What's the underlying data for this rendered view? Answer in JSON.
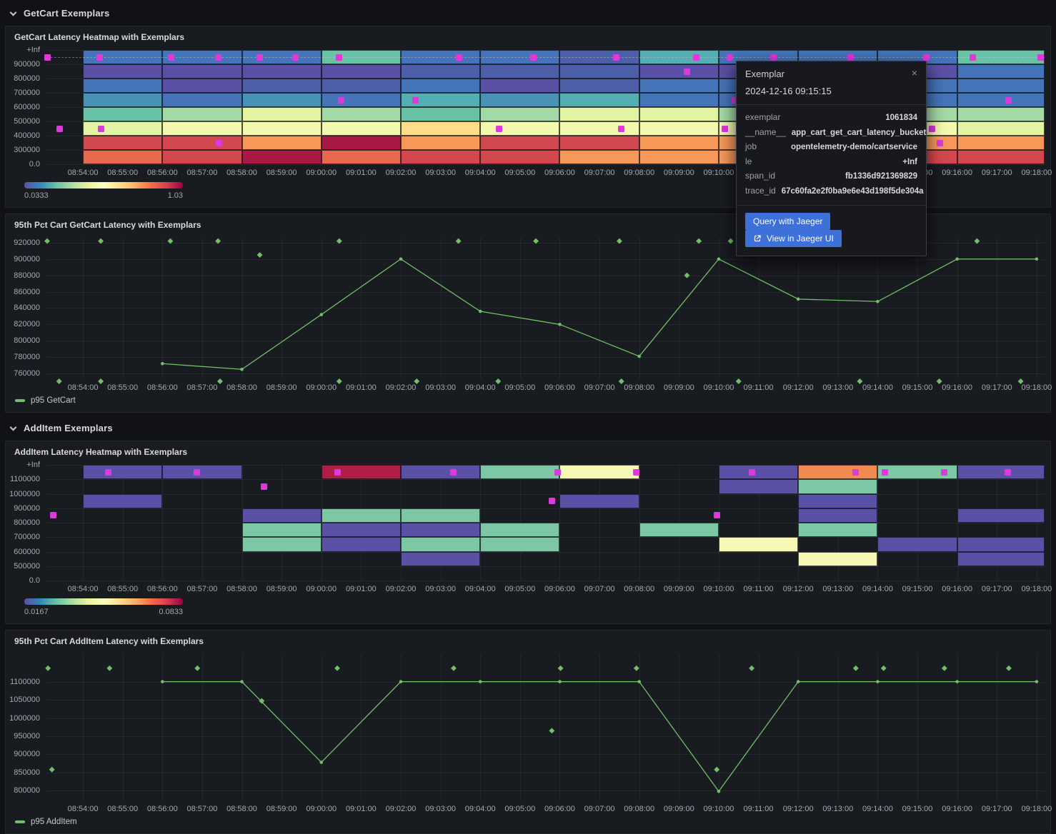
{
  "colors": {
    "background": "#111217",
    "panel_background": "#181b1f",
    "series_green": "#73bf69",
    "exemplar_magenta": "#da3bda",
    "button_blue": "#3d71d9",
    "text_primary": "#d8d9da",
    "text_axis": "#a6a9b0"
  },
  "palette": {
    "P": "#5a50a5",
    "BP": "#4d5fa9",
    "B": "#4574b8",
    "TB": "#4792b5",
    "TB2": "#54aeb2",
    "T": "#68c3a6",
    "T2": "#7cc8a5",
    "G": "#a3d9a4",
    "YG": "#e2f4a2",
    "Y": "#f2f8ae",
    "Y2": "#f7f8b5",
    "OY": "#fedc8a",
    "O": "#f79859",
    "O2": "#f08a52",
    "RO": "#e9694f",
    "R": "#d3484e",
    "C": "#a81a45",
    "C2": "#b01d45"
  },
  "sections": [
    {
      "title": "GetCart Exemplars"
    },
    {
      "title": "AddItem Exemplars"
    }
  ],
  "x_ticks": [
    "08:54:00",
    "08:55:00",
    "08:56:00",
    "08:57:00",
    "08:58:00",
    "08:59:00",
    "09:00:00",
    "09:01:00",
    "09:02:00",
    "09:03:00",
    "09:04:00",
    "09:05:00",
    "09:06:00",
    "09:07:00",
    "09:08:00",
    "09:09:00",
    "09:10:00",
    "09:11:00",
    "09:12:00",
    "09:13:00",
    "09:14:00",
    "09:15:00",
    "09:16:00",
    "09:17:00",
    "09:18:00"
  ],
  "x_range": {
    "start_label": "08:54:00",
    "end_label": "09:18:00",
    "min_offset_min": -0.9,
    "span_min": 25.1
  },
  "chart_data": [
    {
      "type": "heatmap",
      "title": "GetCart Latency Heatmap with Exemplars",
      "y_ticks": [
        "+Inf",
        "900000",
        "800000",
        "700000",
        "600000",
        "500000",
        "400000",
        "300000",
        "0.0"
      ],
      "col_start_min": 0,
      "col_width_min": 2,
      "dashed_guideline": true,
      "colorbar": {
        "min": "0.0333",
        "max": "1.03"
      },
      "cells": [
        [
          "B",
          "P",
          "B",
          "TB",
          "T",
          "YG",
          "R",
          "RO"
        ],
        [
          "B",
          "P",
          "P",
          "B",
          "G",
          "Y",
          "R",
          "R"
        ],
        [
          "B",
          "P",
          "BP",
          "TB",
          "YG",
          "Y",
          "O",
          "C"
        ],
        [
          "T",
          "P",
          "BP",
          "B",
          "G",
          "Y",
          "C",
          "RO"
        ],
        [
          "B",
          "BP",
          "B",
          "TB2",
          "T",
          "OY",
          "O",
          "R"
        ],
        [
          "B",
          "BP",
          "P",
          "TB",
          "G",
          "Y",
          "R",
          "R"
        ],
        [
          "BP",
          "BP",
          "BP",
          "TB2",
          "YG",
          "Y",
          "R",
          "O"
        ],
        [
          "TB2",
          "P",
          "B",
          "B",
          "YG",
          "Y",
          "O",
          "O"
        ],
        [
          "B",
          "P",
          "B",
          "B",
          "G",
          "Y",
          "O",
          "O"
        ],
        [
          "B",
          "P",
          "B",
          "TB",
          "G",
          "Y",
          "O",
          "R"
        ],
        [
          "B",
          "P",
          "B",
          "B",
          "G",
          "Y",
          "O",
          "R"
        ],
        [
          "T",
          "B",
          "B",
          "B",
          "G",
          "YG",
          "O",
          "R"
        ]
      ],
      "exemplars": [
        {
          "t": -0.89,
          "row": 0
        },
        {
          "t": 0.43,
          "row": 0
        },
        {
          "t": 2.22,
          "row": 0
        },
        {
          "t": 3.4,
          "row": 0
        },
        {
          "t": 4.45,
          "row": 0
        },
        {
          "t": 5.35,
          "row": 0
        },
        {
          "t": 6.44,
          "row": 0
        },
        {
          "t": 9.46,
          "row": 0
        },
        {
          "t": 11.33,
          "row": 0
        },
        {
          "t": 13.42,
          "row": 0
        },
        {
          "t": 15.43,
          "row": 0
        },
        {
          "t": 16.28,
          "row": 0
        },
        {
          "t": 17.38,
          "row": 0
        },
        {
          "t": 19.32,
          "row": 0
        },
        {
          "t": 21.23,
          "row": 0
        },
        {
          "t": 22.4,
          "row": 0
        },
        {
          "t": 24.1,
          "row": 0
        },
        {
          "t": 15.2,
          "row": 1
        },
        {
          "t": 6.5,
          "row": 3
        },
        {
          "t": 8.37,
          "row": 3
        },
        {
          "t": 16.4,
          "row": 3
        },
        {
          "t": 23.3,
          "row": 3
        },
        {
          "t": -0.59,
          "row": 5
        },
        {
          "t": 0.45,
          "row": 5
        },
        {
          "t": 10.48,
          "row": 5
        },
        {
          "t": 13.54,
          "row": 5
        },
        {
          "t": 16.16,
          "row": 5
        },
        {
          "t": 21.36,
          "row": 5
        },
        {
          "t": 3.42,
          "row": 6
        },
        {
          "t": 21.57,
          "row": 6
        }
      ]
    },
    {
      "type": "line",
      "title": "95th Pct Cart GetCart Latency with Exemplars",
      "legend": "p95 GetCart",
      "series_color": "#73bf69",
      "y_ticks": [
        920000,
        900000,
        880000,
        860000,
        840000,
        820000,
        800000,
        780000,
        760000
      ],
      "ylim": [
        753000,
        926000
      ],
      "x": [
        2,
        4,
        6,
        8,
        10,
        12,
        14,
        16,
        18,
        20,
        22,
        24
      ],
      "values": [
        772000,
        765000,
        832000,
        900000,
        836000,
        820000,
        781000,
        900000,
        851000,
        848000,
        900000,
        900000
      ],
      "exemplars": [
        {
          "t": -0.9,
          "v": 922000
        },
        {
          "t": 0.45,
          "v": 922000
        },
        {
          "t": 2.2,
          "v": 922000
        },
        {
          "t": 3.4,
          "v": 922000
        },
        {
          "t": 6.45,
          "v": 922000
        },
        {
          "t": 9.45,
          "v": 922000
        },
        {
          "t": 11.4,
          "v": 922000
        },
        {
          "t": 13.5,
          "v": 922000
        },
        {
          "t": 15.5,
          "v": 922000
        },
        {
          "t": 16.3,
          "v": 922000
        },
        {
          "t": 22.5,
          "v": 922000
        },
        {
          "t": 4.45,
          "v": 905000
        },
        {
          "t": 15.2,
          "v": 880000
        },
        {
          "t": -0.6,
          "v": 750000
        },
        {
          "t": 0.45,
          "v": 750000
        },
        {
          "t": 3.45,
          "v": 750000
        },
        {
          "t": 6.45,
          "v": 750000
        },
        {
          "t": 8.4,
          "v": 750000
        },
        {
          "t": 10.45,
          "v": 750000
        },
        {
          "t": 13.55,
          "v": 750000
        },
        {
          "t": 16.5,
          "v": 750000
        },
        {
          "t": 19.55,
          "v": 750000
        },
        {
          "t": 21.55,
          "v": 750000
        },
        {
          "t": 23.6,
          "v": 750000
        }
      ]
    },
    {
      "type": "heatmap",
      "title": "AddItem Latency Heatmap with Exemplars",
      "y_ticks": [
        "+Inf",
        "1100000",
        "1000000",
        "900000",
        "800000",
        "700000",
        "600000",
        "500000",
        "0.0"
      ],
      "col_start_min": 0,
      "col_width_min": 2,
      "dashed_guideline": false,
      "colorbar": {
        "min": "0.0167",
        "max": "0.0833"
      },
      "cells": [
        [
          "P",
          null,
          "P",
          null,
          null,
          null,
          null,
          null
        ],
        [
          "P",
          null,
          null,
          null,
          null,
          null,
          null,
          null
        ],
        [
          null,
          null,
          null,
          "P",
          "T2",
          "T2",
          null,
          null
        ],
        [
          "C2",
          null,
          null,
          "T2",
          "P",
          "P",
          null,
          null
        ],
        [
          "P",
          null,
          null,
          "T2",
          "P",
          "T2",
          "P",
          null
        ],
        [
          "T2",
          null,
          null,
          null,
          "T2",
          "T2",
          null,
          null
        ],
        [
          "Y2",
          null,
          "P",
          null,
          null,
          null,
          null,
          null
        ],
        [
          null,
          null,
          null,
          null,
          "T2",
          null,
          null,
          null
        ],
        [
          "P",
          "P",
          null,
          null,
          null,
          "Y2",
          null,
          null
        ],
        [
          "O2",
          "T2",
          "P",
          "P",
          "T2",
          null,
          "Y2",
          null
        ],
        [
          "T2",
          null,
          null,
          null,
          null,
          "P",
          null,
          null
        ],
        [
          "P",
          null,
          null,
          "P",
          null,
          "P",
          "P",
          null
        ]
      ],
      "exemplars": [
        {
          "t": 0.63,
          "row": 0
        },
        {
          "t": 2.86,
          "row": 0
        },
        {
          "t": 6.4,
          "row": 0
        },
        {
          "t": 9.32,
          "row": 0
        },
        {
          "t": 11.95,
          "row": 0
        },
        {
          "t": 13.92,
          "row": 0
        },
        {
          "t": 16.84,
          "row": 0
        },
        {
          "t": 19.45,
          "row": 0
        },
        {
          "t": 20.18,
          "row": 0
        },
        {
          "t": 21.67,
          "row": 0
        },
        {
          "t": 23.28,
          "row": 0
        },
        {
          "t": 4.55,
          "row": 1
        },
        {
          "t": 11.8,
          "row": 2
        },
        {
          "t": -0.75,
          "row": 3
        },
        {
          "t": 15.95,
          "row": 3
        }
      ]
    },
    {
      "type": "line",
      "title": "95th Pct Cart AddItem Latency with Exemplars",
      "legend": "p95 AddItem",
      "series_color": "#73bf69",
      "y_ticks": [
        1100000,
        1050000,
        1000000,
        950000,
        900000,
        850000,
        800000
      ],
      "ylim": [
        773000,
        1176000
      ],
      "x": [
        2,
        4,
        6,
        8,
        10,
        12,
        14,
        16,
        18,
        20,
        22,
        24
      ],
      "values": [
        1100000,
        1100000,
        878000,
        1100000,
        1100000,
        1100000,
        1100000,
        798000,
        1100000,
        1100000,
        1100000,
        1100000
      ],
      "exemplars": [
        {
          "t": -0.88,
          "v": 1137000
        },
        {
          "t": 0.67,
          "v": 1137000
        },
        {
          "t": 2.88,
          "v": 1137000
        },
        {
          "t": 6.4,
          "v": 1137000
        },
        {
          "t": 9.33,
          "v": 1137000
        },
        {
          "t": 12.02,
          "v": 1137000
        },
        {
          "t": 13.93,
          "v": 1137000
        },
        {
          "t": 16.83,
          "v": 1137000
        },
        {
          "t": 19.45,
          "v": 1137000
        },
        {
          "t": 20.15,
          "v": 1137000
        },
        {
          "t": 21.68,
          "v": 1137000
        },
        {
          "t": 23.3,
          "v": 1137000
        },
        {
          "t": -0.78,
          "v": 858000
        },
        {
          "t": 4.5,
          "v": 1047000
        },
        {
          "t": 11.8,
          "v": 965000
        },
        {
          "t": 15.95,
          "v": 858000
        }
      ]
    }
  ],
  "tooltip": {
    "title": "Exemplar",
    "close_label": "×",
    "timestamp": "2024-12-16 09:15:15",
    "fields": [
      {
        "key": "exemplar",
        "value": "1061834"
      },
      {
        "key": "__name__",
        "value": "app_cart_get_cart_latency_bucket"
      },
      {
        "key": "job",
        "value": "opentelemetry-demo/cartservice"
      },
      {
        "key": "le",
        "value": "+Inf"
      },
      {
        "key": "span_id",
        "value": "fb1336d921369829"
      },
      {
        "key": "trace_id",
        "value": "67c60fa2e2f0ba9e6e43d198f5de304a"
      }
    ],
    "buttons": [
      {
        "label": "Query with Jaeger"
      },
      {
        "label": "View in Jaeger UI"
      }
    ]
  }
}
